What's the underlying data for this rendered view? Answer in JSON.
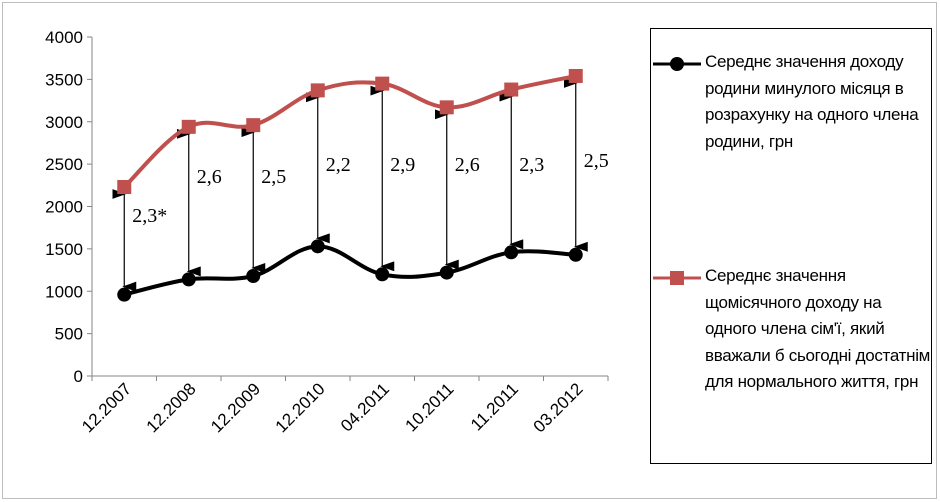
{
  "chart_data": {
    "type": "line",
    "categories": [
      "12.2007",
      "12.2008",
      "12.2009",
      "12.2010",
      "04.2011",
      "10.2011",
      "11.2011",
      "03.2012"
    ],
    "ylim": [
      0,
      4000
    ],
    "yticks": [
      0,
      500,
      1000,
      1500,
      2000,
      2500,
      3000,
      3500,
      4000
    ],
    "grid": false,
    "legend_position": "right",
    "series": [
      {
        "name": "Середнє значення доходу родини минулого місяця в розрахунку на одного члена родини, грн",
        "color": "#000000",
        "marker": "circle",
        "values": [
          960,
          1140,
          1180,
          1530,
          1200,
          1220,
          1460,
          1430
        ]
      },
      {
        "name": "Середнє значення щомісячного доходу на одного члена сім'ї, який вважали б сьогодні достатнім для нормального життя, грн",
        "color": "#c0504d",
        "marker": "square",
        "values": [
          2230,
          2940,
          2960,
          3370,
          3450,
          3170,
          3380,
          3540
        ]
      }
    ],
    "ratio_labels": [
      "2,3*",
      "2,6",
      "2,5",
      "2,2",
      "2,9",
      "2,6",
      "2,3",
      "2,5"
    ]
  }
}
